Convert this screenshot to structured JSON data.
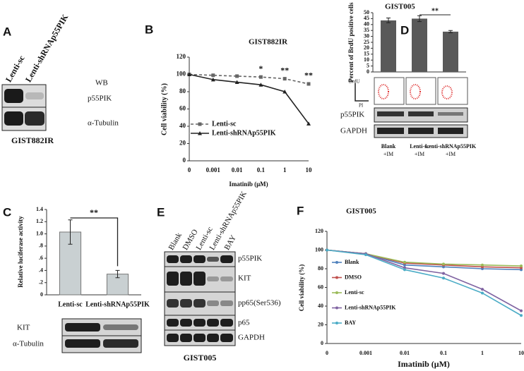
{
  "chart_data": [
    {
      "type": "line",
      "title": "GIST882IR",
      "y_label": "Cell viability (%)",
      "x_label": "Imatinib (μM)",
      "categories": [
        "0",
        "0.001",
        "0.01",
        "0.1",
        "1",
        "10"
      ],
      "series": [
        {
          "name": "Lenti-sc",
          "color": "#666666",
          "dash": true,
          "marker": "square",
          "values": [
            100,
            99,
            98,
            97,
            95,
            89
          ]
        },
        {
          "name": "Lenti-shRNAp55PIK",
          "color": "#222222",
          "dash": false,
          "marker": "triangle",
          "values": [
            100,
            94,
            91,
            88,
            80,
            43
          ]
        }
      ],
      "annotations": [
        "*",
        "**",
        "**"
      ],
      "ylim": [
        0,
        120
      ],
      "yticks": [
        0,
        20,
        40,
        60,
        80,
        100,
        120
      ],
      "grid": false
    },
    {
      "type": "bar",
      "title": "GIST005",
      "y_label": "Percent of BrdU positive cells",
      "categories": [
        "Blank",
        "Lenti-sc",
        "Lenti-shRNAp55PIK"
      ],
      "values": [
        43.5,
        45,
        34
      ],
      "errors": [
        2,
        2.5,
        1
      ],
      "color": "#595959",
      "annotations": [
        "**"
      ],
      "ylim": [
        0,
        50
      ],
      "yticks": [
        0,
        5,
        10,
        15,
        20,
        25,
        30,
        35,
        40,
        45,
        50
      ],
      "grid": false
    },
    {
      "type": "bar",
      "y_label": "Relative luciferase activity",
      "categories": [
        "Lenti-sc",
        "Lenti-shRNAp55PIK"
      ],
      "values": [
        1.03,
        0.34
      ],
      "errors": [
        0.2,
        0.06
      ],
      "color": "#c9d0d2",
      "annotations": [
        "**"
      ],
      "ylim": [
        0,
        1.4
      ],
      "yticks": [
        0,
        {
          "value": 0.2,
          "label": ".2"
        },
        {
          "value": 0.4,
          "label": ".4"
        },
        {
          "value": 0.6,
          "label": ".6"
        },
        {
          "value": 0.8,
          "label": ".8"
        },
        {
          "value": 1.0,
          "label": "1.0"
        },
        {
          "value": 1.2,
          "label": "1.2"
        },
        {
          "value": 1.4,
          "label": "1.4"
        }
      ],
      "grid": false
    },
    {
      "type": "line",
      "title": "GIST005",
      "y_label": "Cell viability (%)",
      "x_label": "Imatinib (μM)",
      "categories": [
        "0",
        "0.001",
        "0.01",
        "0.1",
        "1",
        "10"
      ],
      "series": [
        {
          "name": "Blank",
          "color": "#4f81bd",
          "dash": false,
          "marker": "circle",
          "values": [
            100,
            96,
            84,
            82,
            80,
            79
          ]
        },
        {
          "name": "DMSO",
          "color": "#c0504d",
          "dash": false,
          "marker": "circle",
          "values": [
            100,
            96,
            86,
            84,
            82,
            81
          ]
        },
        {
          "name": "Lenti-sc",
          "color": "#9bbb59",
          "dash": false,
          "marker": "circle",
          "values": [
            100,
            96,
            87,
            85,
            84,
            83
          ]
        },
        {
          "name": "Lenti-shRNAp55PIK",
          "color": "#8064a2",
          "dash": false,
          "marker": "circle",
          "values": [
            100,
            96,
            81,
            75,
            58,
            35
          ]
        },
        {
          "name": "BAY",
          "color": "#4bacc6",
          "dash": false,
          "marker": "circle",
          "values": [
            100,
            95,
            79,
            70,
            54,
            30
          ]
        }
      ],
      "ylim": [
        0,
        120
      ],
      "yticks": [
        0,
        20,
        40,
        60,
        80,
        100,
        120
      ],
      "grid": false
    }
  ],
  "panels": {
    "letters": [
      "A",
      "B",
      "C",
      "D",
      "E",
      "F"
    ],
    "A": {
      "lanes": [
        "Lenti-sc",
        "Lenti-shRNAp55PIK"
      ],
      "method": "WB",
      "proteins": [
        "p55PIK",
        "α-Tubulin"
      ],
      "cell_line": "GIST882IR"
    },
    "C": {
      "proteins": [
        "KIT",
        "α-Tubulin"
      ]
    },
    "D": {
      "axes": [
        "BrdU",
        "PI"
      ],
      "proteins": [
        "p55PIK",
        "GAPDH"
      ],
      "treatment": "+IM"
    },
    "E": {
      "lanes": [
        "Blank",
        "DMSO",
        "Lenti-sc",
        "Lenti-shRNAp55PIK",
        "BAY"
      ],
      "proteins": [
        "p55PIK",
        "KIT",
        "pp65(Ser536)",
        "p65",
        "GAPDH"
      ],
      "cell_line": "GIST005"
    }
  }
}
